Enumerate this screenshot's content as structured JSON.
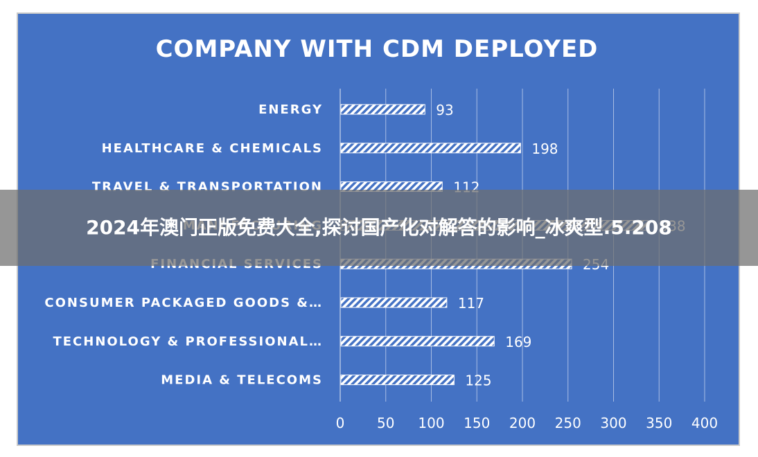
{
  "chart_data": {
    "type": "bar",
    "orientation": "horizontal",
    "title": "COMPANY WITH CDM DEPLOYED",
    "categories": [
      "ENERGY",
      "HEALTHCARE & CHEMICALS",
      "TRAVEL & TRANSPORTATION",
      "MANUFACTURING",
      "FINANCIAL SERVICES",
      "CONSUMER PACKAGED GOODS &…",
      "TECHNOLOGY & PROFESSIONAL…",
      "MEDIA & TELECOMS"
    ],
    "values": [
      93,
      198,
      112,
      338,
      254,
      117,
      169,
      125
    ],
    "xlim": [
      0,
      400
    ],
    "xticks": [
      0,
      50,
      100,
      150,
      200,
      250,
      300,
      350,
      400
    ],
    "grid": true,
    "legend": "none",
    "data_labels": true,
    "colors": {
      "background": "#4472c4",
      "bar": "#ffffff",
      "text": "#ffffff"
    },
    "bar_pattern": "diagonal-hatch"
  },
  "overlay": {
    "caption": "2024年澳门正版免费大全,探讨国产化对解答的影响_冰爽型.5.208"
  }
}
